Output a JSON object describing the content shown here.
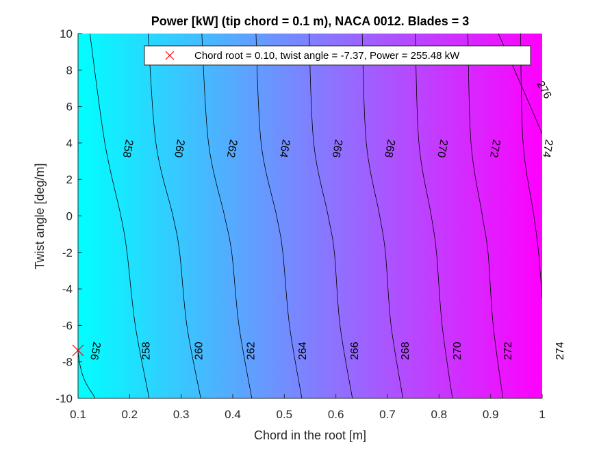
{
  "chart_data": {
    "type": "contour",
    "title": "Power [kW] (tip chord = 0.1 m), NACA 0012. Blades = 3",
    "xlabel": "Chord in the root [m]",
    "ylabel": "Twist angle [deg/m]",
    "xlim": [
      0.1,
      1
    ],
    "ylim": [
      -10,
      10
    ],
    "x_ticks": [
      0.1,
      0.2,
      0.3,
      0.4,
      0.5,
      0.6,
      0.7,
      0.8,
      0.9,
      1
    ],
    "y_ticks": [
      -10,
      -8,
      -6,
      -4,
      -2,
      0,
      2,
      4,
      6,
      8,
      10
    ],
    "x_tick_labels": [
      "0.1",
      "0.2",
      "0.3",
      "0.4",
      "0.5",
      "0.6",
      "0.7",
      "0.8",
      "0.9",
      "1"
    ],
    "y_tick_labels": [
      "-10",
      "-8",
      "-6",
      "-4",
      "-2",
      "0",
      "2",
      "4",
      "6",
      "8",
      "10"
    ],
    "colormap": {
      "low": "#00ffff",
      "high": "#ff00ff"
    },
    "contour_levels": [
      {
        "level": 256,
        "points": [
          [
            0.1,
            1.4
          ],
          [
            0.1,
            -7.37
          ],
          [
            0.133,
            -10
          ]
        ]
      },
      {
        "level": 258,
        "points": [
          [
            0.123,
            10
          ],
          [
            0.152,
            4
          ],
          [
            0.183,
            0
          ],
          [
            0.195,
            -2
          ],
          [
            0.211,
            -6
          ],
          [
            0.238,
            -10
          ]
        ]
      },
      {
        "level": 260,
        "points": [
          [
            0.236,
            10
          ],
          [
            0.251,
            4
          ],
          [
            0.284,
            0
          ],
          [
            0.297,
            -2
          ],
          [
            0.311,
            -6
          ],
          [
            0.338,
            -10
          ]
        ]
      },
      {
        "level": 262,
        "points": [
          [
            0.34,
            10
          ],
          [
            0.353,
            4
          ],
          [
            0.384,
            0
          ],
          [
            0.398,
            -2
          ],
          [
            0.412,
            -6
          ],
          [
            0.437,
            -10
          ]
        ]
      },
      {
        "level": 264,
        "points": [
          [
            0.445,
            10
          ],
          [
            0.455,
            4
          ],
          [
            0.485,
            0
          ],
          [
            0.497,
            -2
          ],
          [
            0.51,
            -6
          ],
          [
            0.534,
            -10
          ]
        ]
      },
      {
        "level": 266,
        "points": [
          [
            0.548,
            10
          ],
          [
            0.557,
            4
          ],
          [
            0.585,
            0
          ],
          [
            0.597,
            -2
          ],
          [
            0.608,
            -6
          ],
          [
            0.632,
            -10
          ]
        ]
      },
      {
        "level": 268,
        "points": [
          [
            0.651,
            10
          ],
          [
            0.659,
            4
          ],
          [
            0.685,
            0
          ],
          [
            0.696,
            -2
          ],
          [
            0.707,
            -6
          ],
          [
            0.73,
            -10
          ]
        ]
      },
      {
        "level": 270,
        "points": [
          [
            0.754,
            10
          ],
          [
            0.761,
            4
          ],
          [
            0.785,
            0
          ],
          [
            0.795,
            -2
          ],
          [
            0.806,
            -6
          ],
          [
            0.826,
            -10
          ]
        ]
      },
      {
        "level": 272,
        "points": [
          [
            0.856,
            10
          ],
          [
            0.862,
            4
          ],
          [
            0.884,
            0
          ],
          [
            0.895,
            -2
          ],
          [
            0.905,
            -6
          ],
          [
            0.924,
            -10
          ]
        ]
      },
      {
        "level": 274,
        "points": [
          [
            0.958,
            10
          ],
          [
            0.963,
            4
          ],
          [
            0.984,
            0
          ],
          [
            0.993,
            -2
          ],
          [
            1.0,
            -4.5
          ]
        ]
      },
      {
        "level": 276,
        "points": [
          [
            0.915,
            10
          ],
          [
            0.962,
            7
          ],
          [
            1.0,
            4.5
          ]
        ]
      }
    ],
    "contour_labels": [
      {
        "text": "256",
        "x": 0.133,
        "y": -7.4,
        "angle": 100
      },
      {
        "text": "258",
        "x": 0.196,
        "y": 3.7,
        "angle": 100
      },
      {
        "text": "260",
        "x": 0.296,
        "y": 3.7,
        "angle": 100
      },
      {
        "text": "262",
        "x": 0.398,
        "y": 3.7,
        "angle": 100
      },
      {
        "text": "264",
        "x": 0.5,
        "y": 3.7,
        "angle": 100
      },
      {
        "text": "266",
        "x": 0.602,
        "y": 3.7,
        "angle": 100
      },
      {
        "text": "268",
        "x": 0.704,
        "y": 3.7,
        "angle": 100
      },
      {
        "text": "270",
        "x": 0.806,
        "y": 3.7,
        "angle": 100
      },
      {
        "text": "272",
        "x": 0.908,
        "y": 3.7,
        "angle": 100
      },
      {
        "text": "274",
        "x": 1.01,
        "y": 3.7,
        "angle": 100
      },
      {
        "text": "258",
        "x": 0.233,
        "y": -7.4,
        "angle": -90
      },
      {
        "text": "260",
        "x": 0.335,
        "y": -7.4,
        "angle": -90
      },
      {
        "text": "262",
        "x": 0.436,
        "y": -7.4,
        "angle": -90
      },
      {
        "text": "264",
        "x": 0.536,
        "y": -7.4,
        "angle": -90
      },
      {
        "text": "266",
        "x": 0.637,
        "y": -7.4,
        "angle": -90
      },
      {
        "text": "268",
        "x": 0.735,
        "y": -7.4,
        "angle": -90
      },
      {
        "text": "270",
        "x": 0.836,
        "y": -7.4,
        "angle": -90
      },
      {
        "text": "272",
        "x": 0.934,
        "y": -7.4,
        "angle": -90
      },
      {
        "text": "274",
        "x": 1.035,
        "y": -7.4,
        "angle": -90
      },
      {
        "text": "276",
        "x": 1.003,
        "y": 6.9,
        "angle": 60
      }
    ],
    "optimum_marker": {
      "x": 0.1,
      "y": -7.37,
      "color": "#ff0000",
      "symbol": "x"
    },
    "legend": {
      "location": "top-right",
      "text": "Chord root = 0.10, twist angle = -7.37, Power = 255.48 kW"
    }
  }
}
